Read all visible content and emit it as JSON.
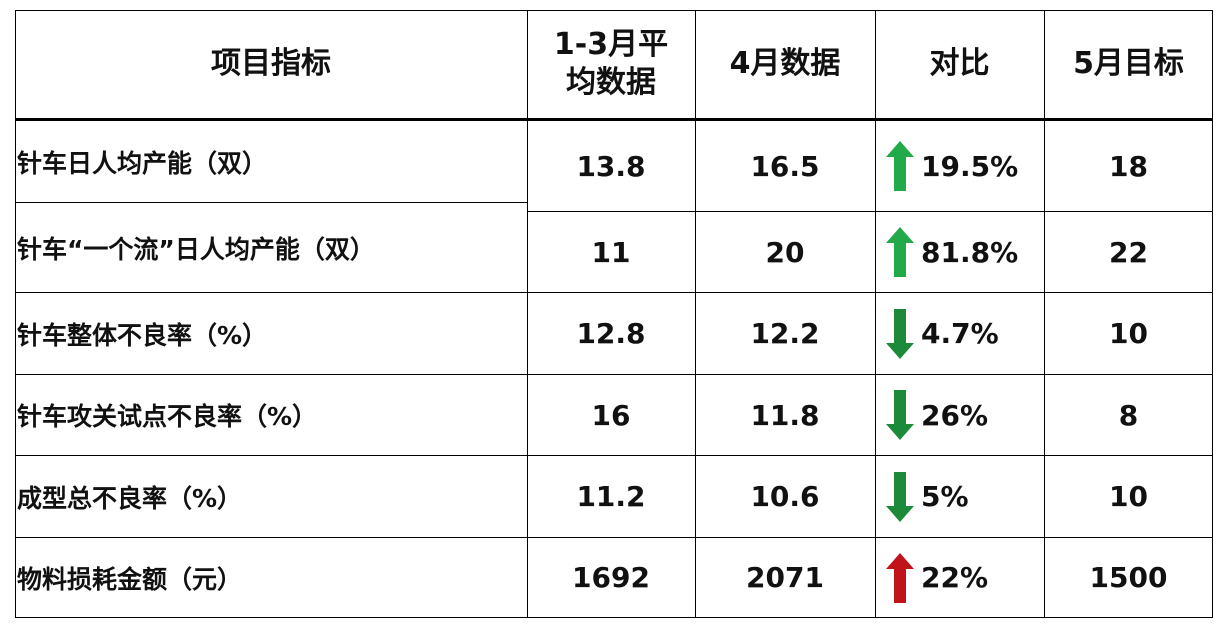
{
  "headers": {
    "item": "项目指标",
    "q1_avg": "1-3月平\n均数据",
    "april": "4月数据",
    "compare": "对比",
    "may_target": "5月目标"
  },
  "rows": [
    {
      "label": "针车日人均产能（双）",
      "q1_avg": "13.8",
      "april": "16.5",
      "change": "19.5%",
      "direction": "up",
      "arrow_color": "#22a94a",
      "may_target": "18"
    },
    {
      "label": "针车“一个流”日人均产能（双）",
      "q1_avg": "11",
      "april": "20",
      "change": "81.8%",
      "direction": "up",
      "arrow_color": "#22a94a",
      "may_target": "22"
    },
    {
      "label": "针车整体不良率（%）",
      "q1_avg": "12.8",
      "april": "12.2",
      "change": "4.7%",
      "direction": "down",
      "arrow_color": "#1d8a3a",
      "may_target": "10"
    },
    {
      "label": "针车攻关试点不良率（%）",
      "q1_avg": "16",
      "april": "11.8",
      "change": "26%",
      "direction": "down",
      "arrow_color": "#1d8a3a",
      "may_target": "8"
    },
    {
      "label": "成型总不良率（%）",
      "q1_avg": "11.2",
      "april": "10.6",
      "change": "5%",
      "direction": "down",
      "arrow_color": "#1d8a3a",
      "may_target": "10"
    },
    {
      "label": "物料损耗金额（元）",
      "q1_avg": "1692",
      "april": "2071",
      "change": "22%",
      "direction": "up",
      "arrow_color": "#c0141a",
      "may_target": "1500"
    }
  ]
}
